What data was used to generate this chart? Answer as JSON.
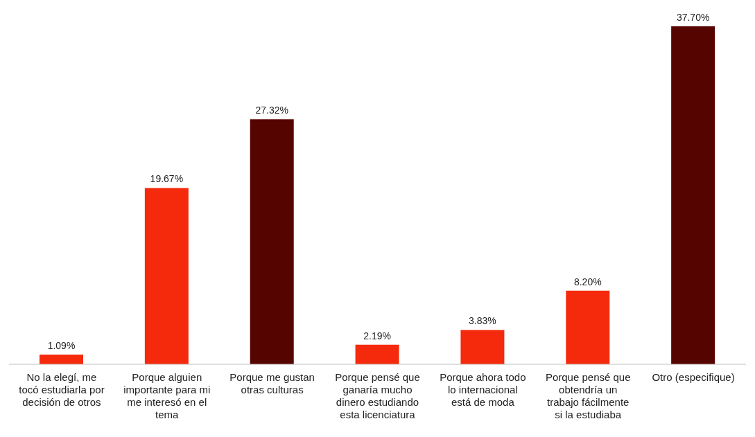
{
  "chart_data": {
    "type": "bar",
    "categories": [
      "No la elegí, me tocó estudiarla por decisión de otros",
      "Porque alguien importante para mi me interesó en el tema",
      "Porque me gustan otras culturas",
      "Porque pensé que ganaría mucho dinero estudiando esta licenciatura",
      "Porque ahora todo lo internacional está de moda",
      "Porque pensé que obtendría un trabajo fácilmente si la estudiaba",
      "Otro (especifique)"
    ],
    "values": [
      1.09,
      19.67,
      27.32,
      2.19,
      3.83,
      8.2,
      37.7
    ],
    "value_labels": [
      "1.09%",
      "19.67%",
      "27.32%",
      "2.19%",
      "3.83%",
      "8.20%",
      "37.70%"
    ],
    "colors": [
      "#f52a0c",
      "#f52a0c",
      "#560400",
      "#f52a0c",
      "#f52a0c",
      "#f52a0c",
      "#560400"
    ],
    "legend": false,
    "grid": false
  }
}
